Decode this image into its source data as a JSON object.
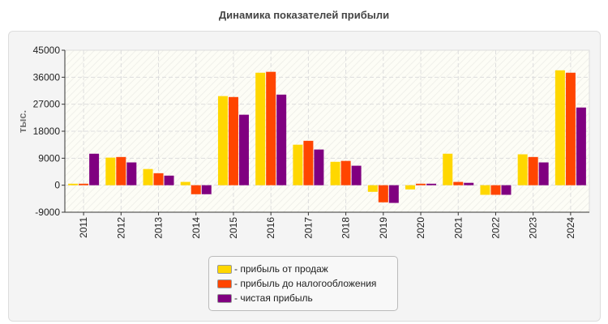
{
  "chart_data": {
    "type": "bar",
    "title": "Динамика показателей прибыли",
    "ylabel": "тыс.",
    "xlabel": "",
    "ylim": [
      -9000,
      45000
    ],
    "yticks": [
      "-9000",
      "0",
      "9000",
      "18000",
      "27000",
      "36000",
      "45000"
    ],
    "grid": true,
    "legend_position": "bottom",
    "categories": [
      "2011",
      "2012",
      "2013",
      "2014",
      "2015",
      "2016",
      "2017",
      "2018",
      "2019",
      "2020",
      "2021",
      "2022",
      "2023",
      "2024"
    ],
    "series": [
      {
        "name": "- прибыль от продаж",
        "color": "#FFD700",
        "values": [
          500,
          9200,
          5400,
          1100,
          29700,
          37500,
          13500,
          7800,
          -2200,
          -1400,
          10500,
          -3200,
          10300,
          38300
        ]
      },
      {
        "name": "- прибыль до налогообложения",
        "color": "#FF4500",
        "values": [
          500,
          9400,
          4000,
          -3000,
          29400,
          37800,
          14800,
          8100,
          -5700,
          500,
          1100,
          -3200,
          9400,
          37500
        ]
      },
      {
        "name": "- чистая прибыль",
        "color": "#800080",
        "values": [
          10500,
          7600,
          3200,
          -3000,
          23500,
          30200,
          11900,
          6500,
          -5900,
          500,
          800,
          -3200,
          7600,
          25900
        ]
      }
    ]
  }
}
